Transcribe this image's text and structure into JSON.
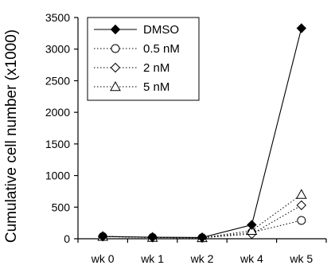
{
  "chart_data": {
    "type": "line",
    "title": "",
    "xlabel": "",
    "ylabel": "Cumulative cell number (x1000)",
    "categories": [
      "wk 0",
      "wk 1",
      "wk 2",
      "wk 4",
      "wk 5"
    ],
    "ylim": [
      0,
      3500
    ],
    "yticks": [
      0,
      500,
      1000,
      1500,
      2000,
      2500,
      3000,
      3500
    ],
    "grid": false,
    "legend_placement": "top-left",
    "series": [
      {
        "name": "DMSO",
        "marker": "filled-diamond",
        "line": "solid",
        "values": [
          35,
          25,
          20,
          220,
          3330
        ]
      },
      {
        "name": "0.5 nM",
        "marker": "open-circle",
        "line": "dotted",
        "values": [
          35,
          20,
          15,
          100,
          290
        ]
      },
      {
        "name": "2 nM",
        "marker": "open-diamond",
        "line": "dotted",
        "values": [
          40,
          20,
          15,
          75,
          530
        ]
      },
      {
        "name": "5 nM",
        "marker": "open-triangle",
        "line": "dotted",
        "values": [
          35,
          20,
          15,
          130,
          700
        ]
      }
    ]
  }
}
